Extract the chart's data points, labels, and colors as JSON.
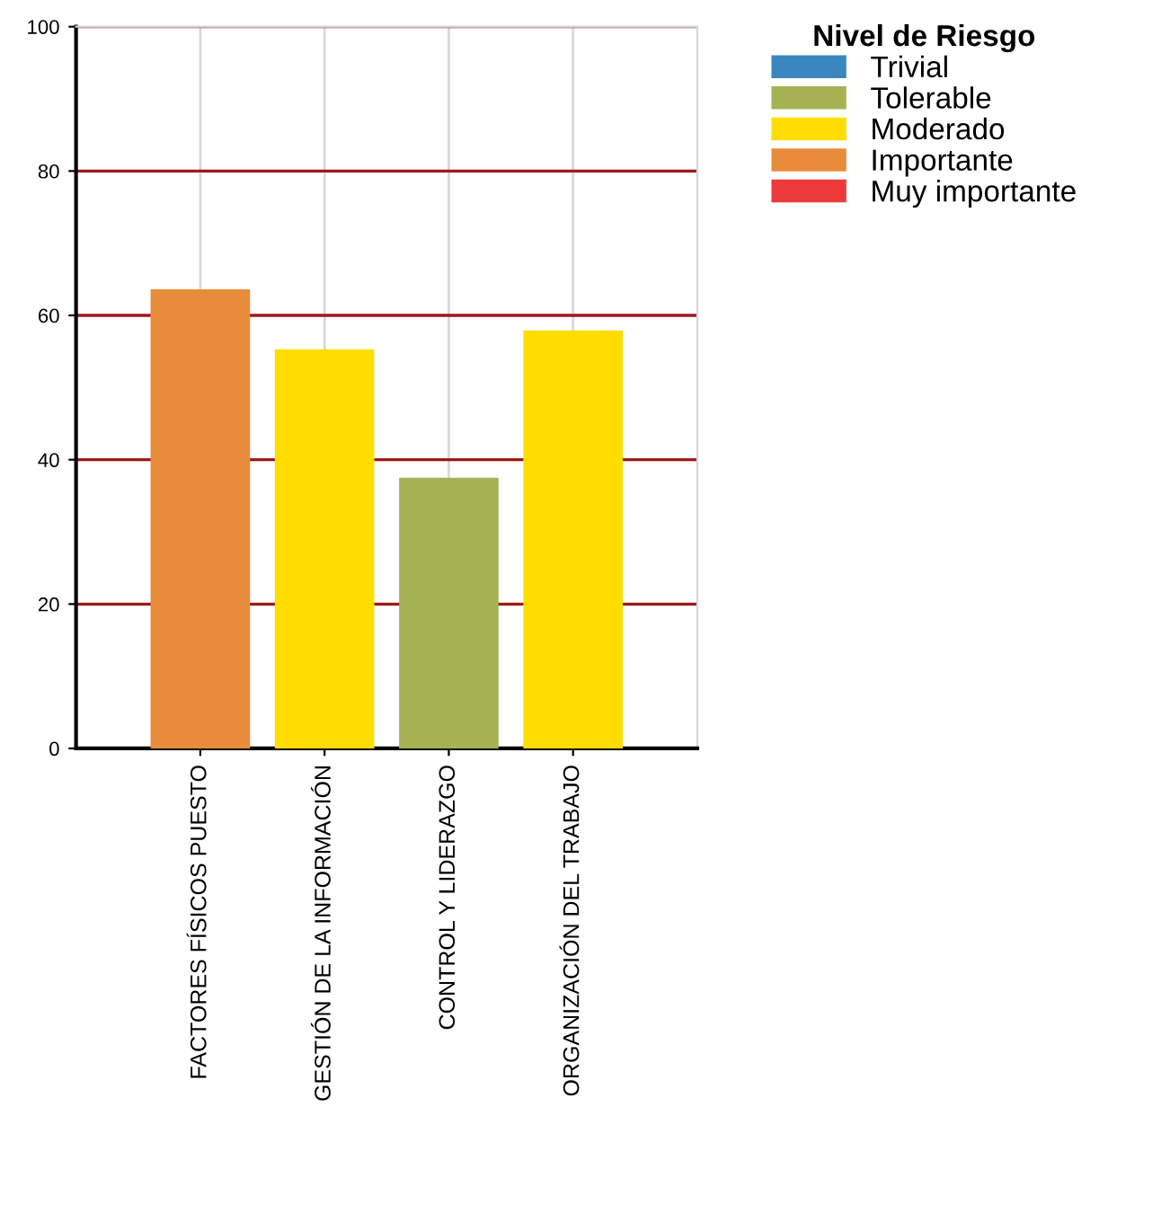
{
  "chart_data": {
    "type": "bar",
    "legend_title": "Nivel de Riesgo",
    "categories": [
      "FACTORES FÍSICOS PUESTO",
      "GESTIÓN DE LA INFORMACIÓN",
      "CONTROL Y LIDERAZGO",
      "ORGANIZACIÓN DEL TRABAJO"
    ],
    "series": [
      {
        "name": "Trivial",
        "color": "#3a87c0",
        "values": [
          null,
          null,
          null,
          null
        ]
      },
      {
        "name": "Tolerable",
        "color": "#a4b253",
        "values": [
          null,
          null,
          37.5,
          null
        ]
      },
      {
        "name": "Moderado",
        "color": "#ffdd00",
        "values": [
          null,
          55.3,
          null,
          57.9
        ]
      },
      {
        "name": "Importante",
        "color": "#e88c3b",
        "values": [
          63.6,
          null,
          null,
          null
        ]
      },
      {
        "name": "Muy importante",
        "color": "#ec3a3a",
        "values": [
          null,
          null,
          null,
          null
        ]
      }
    ],
    "ylim": [
      0,
      100
    ],
    "yticks": [
      0,
      20,
      40,
      60,
      80,
      100
    ],
    "grid": true,
    "legend": "top right"
  }
}
